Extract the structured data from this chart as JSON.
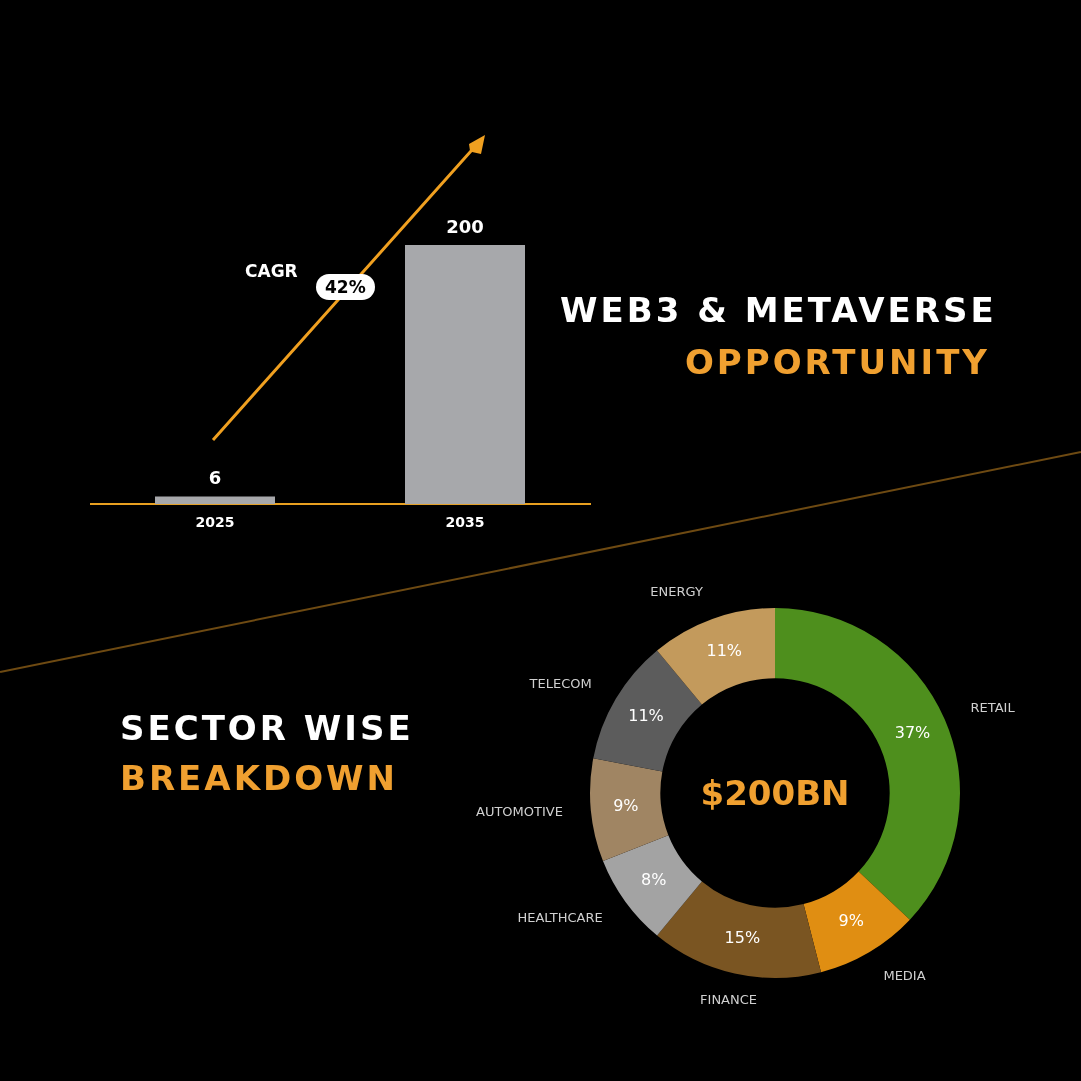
{
  "chart_data": [
    {
      "type": "bar",
      "title": "WEB3 & METAVERSE OPPORTUNITY",
      "categories": [
        "2025",
        "2035"
      ],
      "values": [
        6,
        200
      ],
      "color": "#a7a8ab",
      "data_labels": true,
      "annotations": [
        "CAGR",
        "42%"
      ]
    },
    {
      "type": "donut",
      "title": "SECTOR WISE",
      "subtitle": "BREAKDOWN",
      "categories": [
        "RETAIL",
        "MEDIA",
        "FINANCE",
        "HEALTHCARE",
        "AUTOMOTIVE",
        "TELECOM",
        "ENERGY"
      ],
      "values": [
        37,
        9,
        15,
        8,
        9,
        11,
        11
      ],
      "colors": [
        "#4e8f1d",
        "#e08e12",
        "#7a5522",
        "#a3a3a3",
        "#a08563",
        "#5c5c5c",
        "#c39a5c"
      ],
      "value_labels": [
        "37%",
        "9%",
        "15%",
        "8%",
        "9%",
        "11%",
        "11%"
      ],
      "annotations": [
        "$200BN"
      ]
    }
  ]
}
